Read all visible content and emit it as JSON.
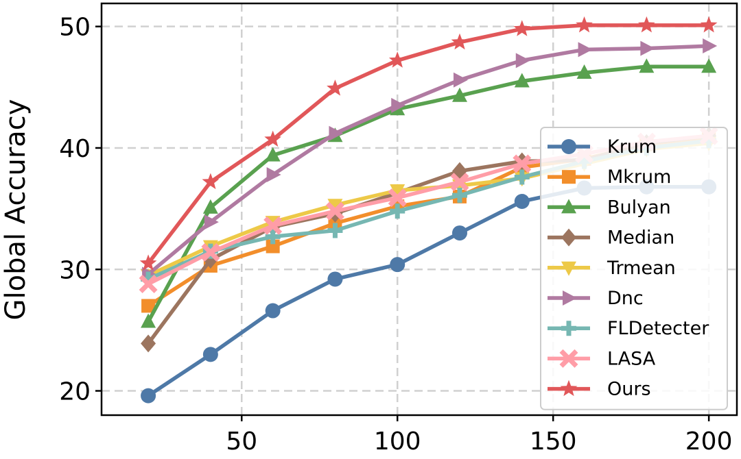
{
  "chart_data": {
    "type": "line",
    "xlabel": "",
    "ylabel": "Global Accuracy",
    "xlim": [
      5,
      209
    ],
    "ylim": [
      18.0,
      51.9
    ],
    "xticks": [
      50,
      100,
      150,
      200
    ],
    "yticks": [
      20,
      30,
      40,
      50
    ],
    "grid": true,
    "legend": "center-right",
    "x": [
      20,
      40,
      60,
      80,
      100,
      120,
      140,
      160,
      180,
      200
    ],
    "series": [
      {
        "name": "Krum",
        "color": "#4E79A7",
        "marker": "circle",
        "values": [
          19.6,
          23.0,
          26.6,
          29.2,
          30.4,
          33.0,
          35.6,
          36.7,
          36.8,
          36.8
        ]
      },
      {
        "name": "Mkrum",
        "color": "#F28E2B",
        "marker": "square",
        "values": [
          27.0,
          30.3,
          31.9,
          33.8,
          35.2,
          36.0,
          38.4,
          39.1,
          40.3,
          40.9
        ]
      },
      {
        "name": "Bulyan",
        "color": "#59A14F",
        "marker": "triangle-up",
        "values": [
          25.7,
          35.1,
          39.4,
          41.0,
          43.2,
          44.3,
          45.5,
          46.2,
          46.7,
          46.7
        ]
      },
      {
        "name": "Median",
        "color": "#9C755F",
        "marker": "diamond",
        "values": [
          23.9,
          30.8,
          33.5,
          34.6,
          36.3,
          38.1,
          38.9,
          39.0,
          40.4,
          41.0
        ]
      },
      {
        "name": "Trmean",
        "color": "#EDC948",
        "marker": "triangle-down",
        "values": [
          29.5,
          31.9,
          33.9,
          35.3,
          36.5,
          36.9,
          37.5,
          38.7,
          39.9,
          40.4
        ]
      },
      {
        "name": "Dnc",
        "color": "#B07AA1",
        "marker": "triangle-right",
        "values": [
          29.6,
          33.9,
          37.8,
          41.2,
          43.5,
          45.6,
          47.2,
          48.1,
          48.2,
          48.4
        ]
      },
      {
        "name": "FLDetecter",
        "color": "#76B7B2",
        "marker": "plus",
        "values": [
          29.2,
          31.5,
          32.7,
          33.2,
          34.8,
          36.1,
          37.6,
          38.9,
          40.0,
          40.6
        ]
      },
      {
        "name": "LASA",
        "color": "#FF9DA7",
        "marker": "x",
        "values": [
          28.8,
          31.4,
          33.6,
          34.8,
          35.9,
          37.2,
          38.7,
          39.5,
          40.5,
          41.0
        ]
      },
      {
        "name": "Ours",
        "color": "#E15759",
        "marker": "star",
        "values": [
          30.5,
          37.2,
          40.7,
          44.9,
          47.2,
          48.7,
          49.8,
          50.1,
          50.1,
          50.1
        ]
      }
    ]
  }
}
